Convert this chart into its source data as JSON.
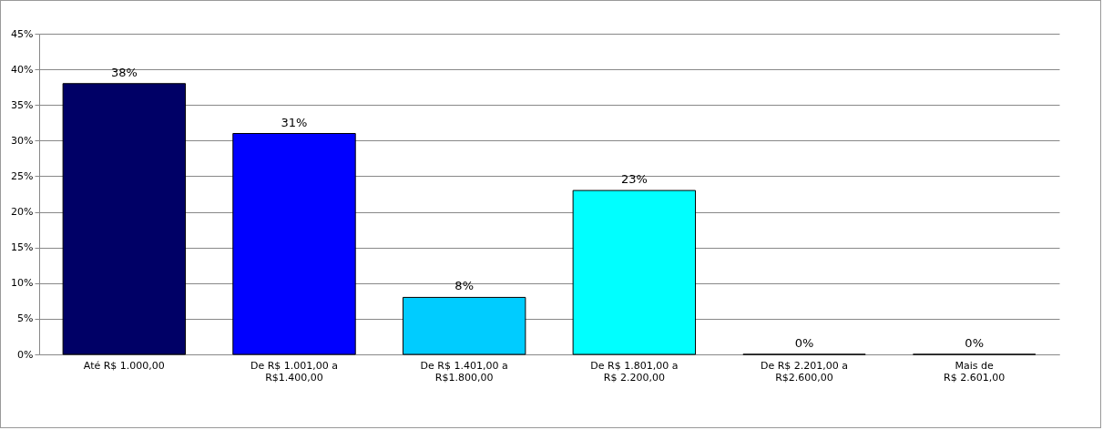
{
  "chart_data": {
    "type": "bar",
    "categories": [
      "Até R$ 1.000,00",
      "De R$ 1.001,00 a\nR$1.400,00",
      "De R$ 1.401,00 a\nR$1.800,00",
      "De R$ 1.801,00 a\nR$ 2.200,00",
      "De R$ 2.201,00 a\nR$2.600,00",
      "Mais de\nR$ 2.601,00"
    ],
    "values": [
      38,
      31,
      8,
      23,
      0,
      0
    ],
    "colors": [
      "#000066",
      "#0000ff",
      "#00ccff",
      "#00ffff",
      null,
      null
    ],
    "value_labels": [
      "38%",
      "31%",
      "8%",
      "23%",
      "0%",
      "0%"
    ],
    "ylim": [
      0,
      45
    ],
    "yticks": [
      {
        "value": 0,
        "label": "0%"
      },
      {
        "value": 5,
        "label": "5%"
      },
      {
        "value": 10,
        "label": "10%"
      },
      {
        "value": 15,
        "label": "15%"
      },
      {
        "value": 20,
        "label": "20%"
      },
      {
        "value": 25,
        "label": "25%"
      },
      {
        "value": 30,
        "label": "30%"
      },
      {
        "value": 35,
        "label": "35%"
      },
      {
        "value": 40,
        "label": "40%"
      },
      {
        "value": 45,
        "label": "45%"
      }
    ],
    "grid": "y"
  }
}
